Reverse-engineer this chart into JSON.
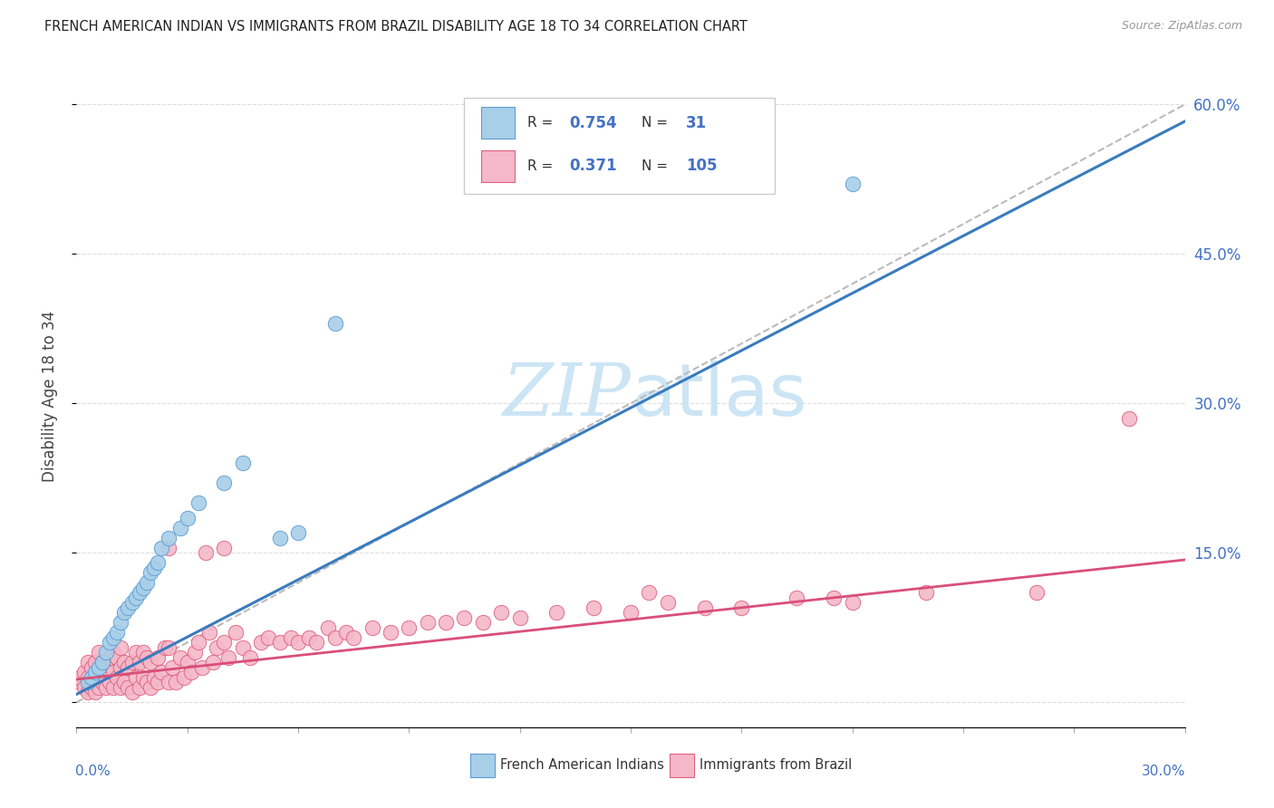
{
  "title": "FRENCH AMERICAN INDIAN VS IMMIGRANTS FROM BRAZIL DISABILITY AGE 18 TO 34 CORRELATION CHART",
  "source": "Source: ZipAtlas.com",
  "ylabel": "Disability Age 18 to 34",
  "right_yticklabels": [
    "",
    "15.0%",
    "30.0%",
    "45.0%",
    "60.0%"
  ],
  "right_yticks": [
    0.0,
    0.15,
    0.3,
    0.45,
    0.6
  ],
  "xmin": 0.0,
  "xmax": 0.3,
  "ymin": -0.025,
  "ymax": 0.64,
  "legend_blue_r": "0.754",
  "legend_blue_n": "31",
  "legend_pink_r": "0.371",
  "legend_pink_n": "105",
  "legend_label_blue": "French American Indians",
  "legend_label_pink": "Immigrants from Brazil",
  "blue_color": "#a8cfe8",
  "blue_edge_color": "#5b9bd5",
  "pink_color": "#f4b8c8",
  "pink_edge_color": "#e06080",
  "blue_line_color": "#3a7bbf",
  "pink_line_color": "#d94f7a",
  "gray_dash_color": "#bbbbbb",
  "watermark_color": "#cce5f5",
  "blue_scatter_x": [
    0.003,
    0.004,
    0.005,
    0.006,
    0.007,
    0.008,
    0.009,
    0.01,
    0.011,
    0.012,
    0.013,
    0.014,
    0.015,
    0.016,
    0.017,
    0.018,
    0.019,
    0.02,
    0.021,
    0.022,
    0.023,
    0.025,
    0.028,
    0.03,
    0.033,
    0.04,
    0.045,
    0.055,
    0.06,
    0.07,
    0.21
  ],
  "blue_scatter_y": [
    0.02,
    0.025,
    0.03,
    0.035,
    0.04,
    0.05,
    0.06,
    0.065,
    0.07,
    0.08,
    0.09,
    0.095,
    0.1,
    0.105,
    0.11,
    0.115,
    0.12,
    0.13,
    0.135,
    0.14,
    0.155,
    0.165,
    0.175,
    0.185,
    0.2,
    0.22,
    0.24,
    0.165,
    0.17,
    0.38,
    0.52
  ],
  "pink_scatter_x": [
    0.001,
    0.001,
    0.002,
    0.002,
    0.003,
    0.003,
    0.003,
    0.004,
    0.004,
    0.005,
    0.005,
    0.005,
    0.006,
    0.006,
    0.006,
    0.007,
    0.007,
    0.008,
    0.008,
    0.009,
    0.009,
    0.01,
    0.01,
    0.01,
    0.011,
    0.011,
    0.012,
    0.012,
    0.012,
    0.013,
    0.013,
    0.014,
    0.014,
    0.015,
    0.015,
    0.016,
    0.016,
    0.017,
    0.017,
    0.018,
    0.018,
    0.019,
    0.019,
    0.02,
    0.02,
    0.021,
    0.022,
    0.022,
    0.023,
    0.024,
    0.025,
    0.025,
    0.026,
    0.027,
    0.028,
    0.029,
    0.03,
    0.031,
    0.032,
    0.033,
    0.034,
    0.035,
    0.036,
    0.037,
    0.038,
    0.04,
    0.041,
    0.043,
    0.045,
    0.047,
    0.05,
    0.052,
    0.055,
    0.058,
    0.06,
    0.063,
    0.065,
    0.068,
    0.07,
    0.073,
    0.075,
    0.08,
    0.085,
    0.09,
    0.095,
    0.1,
    0.105,
    0.11,
    0.115,
    0.12,
    0.13,
    0.14,
    0.15,
    0.16,
    0.17,
    0.18,
    0.195,
    0.21,
    0.23,
    0.26,
    0.025,
    0.04,
    0.155,
    0.205,
    0.285
  ],
  "pink_scatter_y": [
    0.02,
    0.025,
    0.015,
    0.03,
    0.01,
    0.025,
    0.04,
    0.015,
    0.035,
    0.01,
    0.025,
    0.04,
    0.015,
    0.03,
    0.05,
    0.02,
    0.04,
    0.015,
    0.035,
    0.02,
    0.045,
    0.015,
    0.03,
    0.05,
    0.025,
    0.045,
    0.015,
    0.035,
    0.055,
    0.02,
    0.04,
    0.015,
    0.035,
    0.01,
    0.04,
    0.025,
    0.05,
    0.015,
    0.04,
    0.025,
    0.05,
    0.02,
    0.045,
    0.015,
    0.04,
    0.025,
    0.02,
    0.045,
    0.03,
    0.055,
    0.02,
    0.055,
    0.035,
    0.02,
    0.045,
    0.025,
    0.04,
    0.03,
    0.05,
    0.06,
    0.035,
    0.15,
    0.07,
    0.04,
    0.055,
    0.06,
    0.045,
    0.07,
    0.055,
    0.045,
    0.06,
    0.065,
    0.06,
    0.065,
    0.06,
    0.065,
    0.06,
    0.075,
    0.065,
    0.07,
    0.065,
    0.075,
    0.07,
    0.075,
    0.08,
    0.08,
    0.085,
    0.08,
    0.09,
    0.085,
    0.09,
    0.095,
    0.09,
    0.1,
    0.095,
    0.095,
    0.105,
    0.1,
    0.11,
    0.11,
    0.155,
    0.155,
    0.11,
    0.105,
    0.285
  ]
}
